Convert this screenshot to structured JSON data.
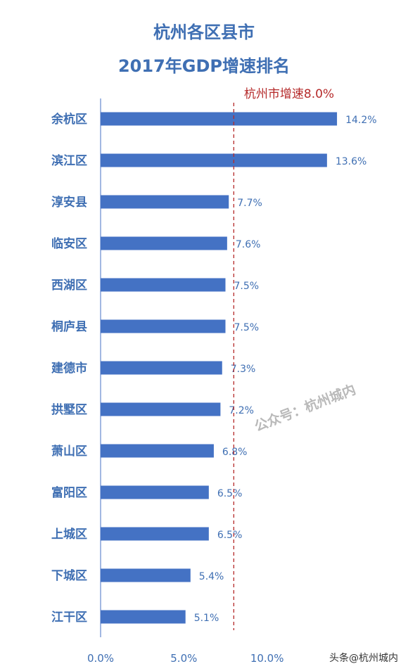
{
  "chart_data": {
    "type": "bar",
    "orientation": "horizontal",
    "title": "杭州各区县市",
    "subtitle": "2017年GDP增速排名",
    "categories": [
      "余杭区",
      "滨江区",
      "淳安县",
      "临安区",
      "西湖区",
      "桐庐县",
      "建德市",
      "拱墅区",
      "萧山区",
      "富阳区",
      "上城区",
      "下城区",
      "江干区"
    ],
    "values": [
      14.2,
      13.6,
      7.7,
      7.6,
      7.5,
      7.5,
      7.3,
      7.2,
      6.8,
      6.5,
      6.5,
      5.4,
      5.1
    ],
    "value_labels": [
      "14.2%",
      "13.6%",
      "7.7%",
      "7.6%",
      "7.5%",
      "7.5%",
      "7.3%",
      "7.2%",
      "6.8%",
      "6.5%",
      "6.5%",
      "5.4%",
      "5.1%"
    ],
    "xlim": [
      0,
      15
    ],
    "xticks": [
      0,
      5,
      10
    ],
    "xtick_labels": [
      "0.0%",
      "5.0%",
      "10.0%"
    ],
    "reference_line": {
      "value": 8.0,
      "label": "杭州市增速8.0%",
      "color": "#b52a2a",
      "style": "dashed"
    },
    "bar_color": "#4472c4",
    "text_color": "#3f6fb3",
    "grid": false,
    "legend": "none"
  },
  "watermark": "公众号：杭州城内",
  "source": "头条@杭州城内"
}
